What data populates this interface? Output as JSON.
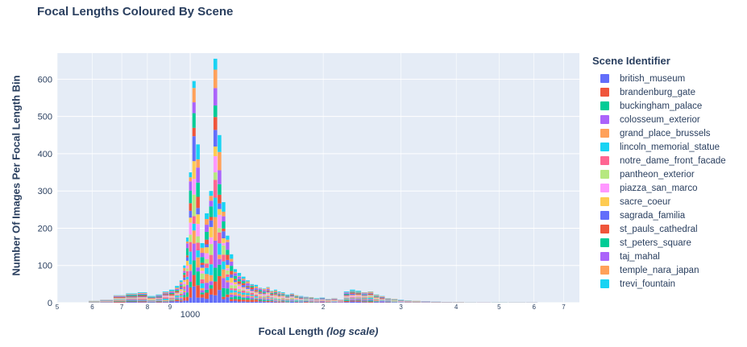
{
  "chart_data": {
    "type": "bar",
    "title": "Focal Lengths Coloured By Scene",
    "xlabel": "Focal Length",
    "xlabel_suffix": "(log scale)",
    "ylabel": "Number Of Images Per Focal Length Bin",
    "x_scale": "log",
    "xlim": [
      500,
      7600
    ],
    "ylim": [
      0,
      670
    ],
    "grid": true,
    "legend_position": "right",
    "legend_title": "Scene Identifier",
    "x_ticks_major": [
      {
        "value": 1000,
        "label": "1000"
      }
    ],
    "x_ticks_minor": [
      {
        "value": 500,
        "label": "5"
      },
      {
        "value": 600,
        "label": "6"
      },
      {
        "value": 700,
        "label": "7"
      },
      {
        "value": 800,
        "label": "8"
      },
      {
        "value": 900,
        "label": "9"
      },
      {
        "value": 2000,
        "label": "2"
      },
      {
        "value": 3000,
        "label": "3"
      },
      {
        "value": 4000,
        "label": "4"
      },
      {
        "value": 5000,
        "label": "5"
      },
      {
        "value": 6000,
        "label": "6"
      },
      {
        "value": 7000,
        "label": "7"
      }
    ],
    "y_ticks": [
      0,
      100,
      200,
      300,
      400,
      500,
      600
    ],
    "series": [
      {
        "name": "british_museum",
        "color": "#636efa"
      },
      {
        "name": "brandenburg_gate",
        "color": "#ef553b"
      },
      {
        "name": "buckingham_palace",
        "color": "#00cc96"
      },
      {
        "name": "colosseum_exterior",
        "color": "#ab63fa"
      },
      {
        "name": "grand_place_brussels",
        "color": "#ffa15a"
      },
      {
        "name": "lincoln_memorial_statue",
        "color": "#19d3f3"
      },
      {
        "name": "notre_dame_front_facade",
        "color": "#ff6692"
      },
      {
        "name": "pantheon_exterior",
        "color": "#b6e880"
      },
      {
        "name": "piazza_san_marco",
        "color": "#ff97ff"
      },
      {
        "name": "sacre_coeur",
        "color": "#fecb52"
      },
      {
        "name": "sagrada_familia",
        "color": "#636efa"
      },
      {
        "name": "st_pauls_cathedral",
        "color": "#ef553b"
      },
      {
        "name": "st_peters_square",
        "color": "#00cc96"
      },
      {
        "name": "taj_mahal",
        "color": "#ab63fa"
      },
      {
        "name": "temple_nara_japan",
        "color": "#ffa15a"
      },
      {
        "name": "trevi_fountain",
        "color": "#19d3f3"
      }
    ],
    "bins": [
      [
        600,
        5
      ],
      [
        650,
        8
      ],
      [
        690,
        20
      ],
      [
        740,
        25
      ],
      [
        780,
        28
      ],
      [
        820,
        18
      ],
      [
        850,
        22
      ],
      [
        880,
        30
      ],
      [
        910,
        35
      ],
      [
        935,
        45
      ],
      [
        955,
        60
      ],
      [
        970,
        100
      ],
      [
        985,
        175
      ],
      [
        1000,
        350
      ],
      [
        1020,
        595
      ],
      [
        1040,
        425
      ],
      [
        1065,
        160
      ],
      [
        1090,
        240
      ],
      [
        1115,
        300
      ],
      [
        1140,
        655
      ],
      [
        1165,
        450
      ],
      [
        1190,
        270
      ],
      [
        1215,
        180
      ],
      [
        1240,
        130
      ],
      [
        1265,
        90
      ],
      [
        1290,
        80
      ],
      [
        1320,
        70
      ],
      [
        1350,
        60
      ],
      [
        1380,
        50
      ],
      [
        1410,
        48
      ],
      [
        1440,
        40
      ],
      [
        1470,
        38
      ],
      [
        1500,
        42
      ],
      [
        1530,
        32
      ],
      [
        1560,
        35
      ],
      [
        1590,
        30
      ],
      [
        1620,
        28
      ],
      [
        1660,
        22
      ],
      [
        1700,
        25
      ],
      [
        1740,
        20
      ],
      [
        1780,
        18
      ],
      [
        1830,
        16
      ],
      [
        1880,
        15
      ],
      [
        1930,
        12
      ],
      [
        1990,
        14
      ],
      [
        2050,
        10
      ],
      [
        2120,
        12
      ],
      [
        2190,
        8
      ],
      [
        2260,
        30
      ],
      [
        2330,
        35
      ],
      [
        2400,
        32
      ],
      [
        2480,
        28
      ],
      [
        2560,
        30
      ],
      [
        2640,
        22
      ],
      [
        2720,
        18
      ],
      [
        2800,
        12
      ],
      [
        2900,
        10
      ],
      [
        3000,
        8
      ],
      [
        3100,
        6
      ],
      [
        3250,
        5
      ],
      [
        3400,
        4
      ],
      [
        3600,
        3
      ],
      [
        3800,
        2
      ],
      [
        4050,
        2
      ],
      [
        4300,
        1
      ],
      [
        4600,
        1
      ],
      [
        5000,
        1
      ],
      [
        5500,
        1
      ],
      [
        6000,
        1
      ]
    ]
  }
}
